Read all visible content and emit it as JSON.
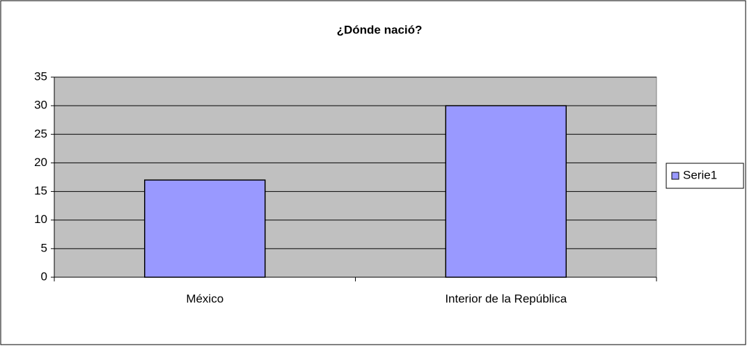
{
  "chart_data": {
    "type": "bar",
    "title": "¿Dónde nació?",
    "categories": [
      "México",
      "Interior de la República"
    ],
    "series": [
      {
        "name": "Serie1",
        "color": "#9999ff",
        "values": [
          17,
          30
        ]
      }
    ],
    "ylim": [
      0,
      35
    ],
    "yticks": [
      0,
      5,
      10,
      15,
      20,
      25,
      30,
      35
    ],
    "grid": true,
    "legend": "right"
  }
}
